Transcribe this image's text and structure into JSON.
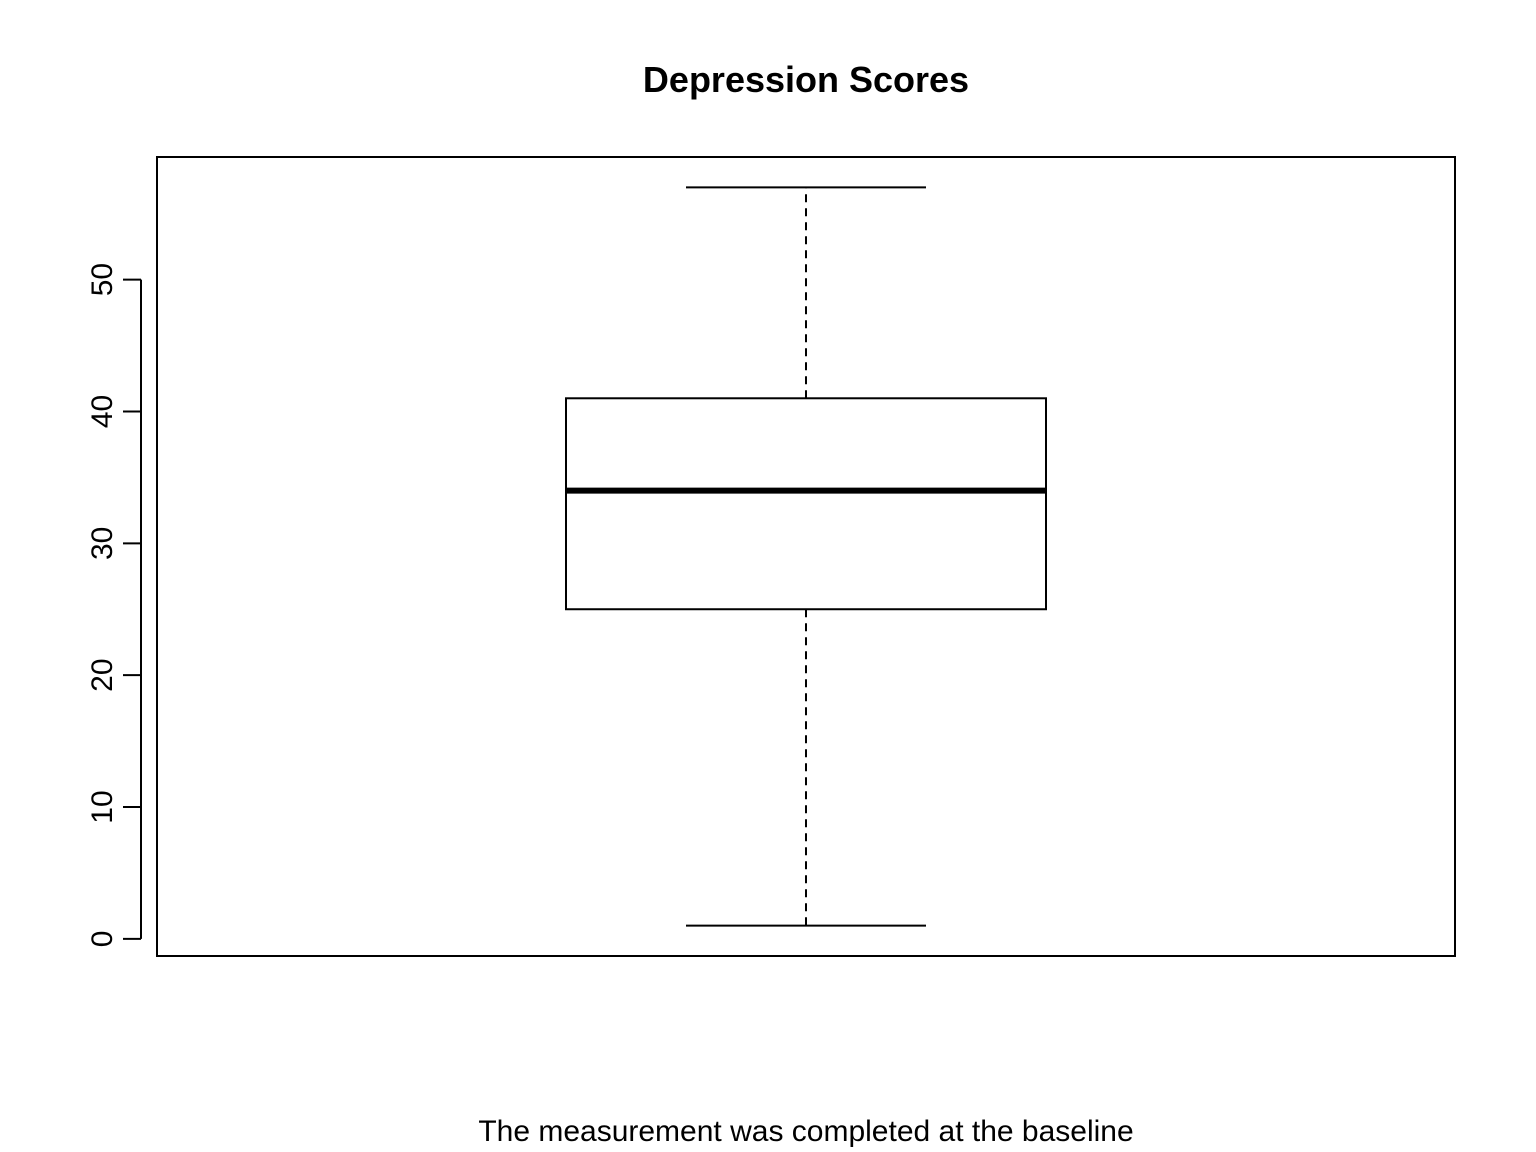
{
  "chart_data": {
    "type": "boxplot",
    "title": "Depression Scores",
    "xlabel": "The measurement was completed at the baseline",
    "ylabel": "",
    "ylim": [
      -1.3,
      59.3
    ],
    "y_ticks": [
      0,
      10,
      20,
      30,
      40,
      50
    ],
    "grid": false,
    "series": [
      {
        "min": 1,
        "q1": 25,
        "median": 34,
        "q3": 41,
        "max": 57
      }
    ],
    "colors": {
      "box_fill": "#ffffff",
      "stroke": "#000000"
    }
  }
}
